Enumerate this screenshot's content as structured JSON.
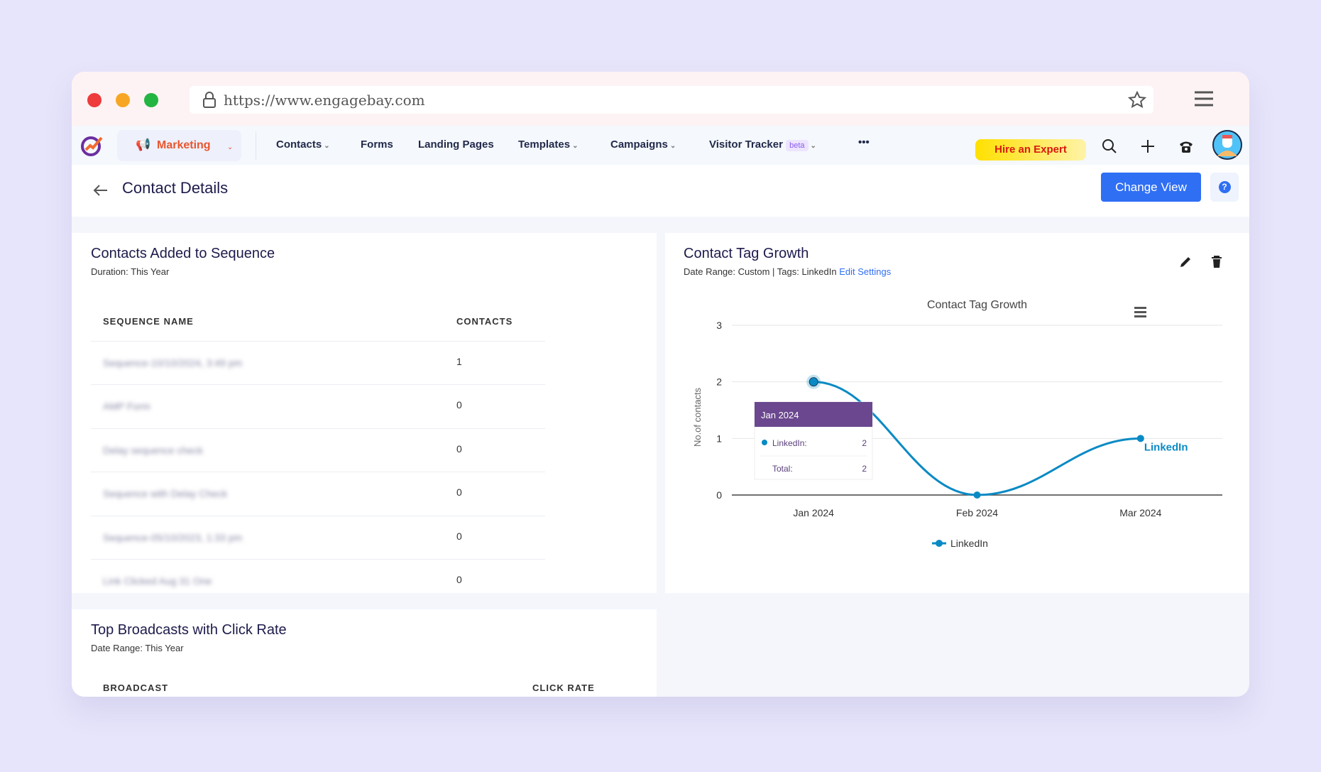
{
  "browser": {
    "url": "https://www.engagebay.com"
  },
  "nav": {
    "module": "Marketing",
    "items": [
      "Contacts",
      "Forms",
      "Landing Pages",
      "Templates",
      "Campaigns",
      "Visitor Tracker"
    ],
    "beta": "beta",
    "more": "•••",
    "hire": "Hire an Expert"
  },
  "header": {
    "title": "Contact Details",
    "change_view": "Change View",
    "help": "?"
  },
  "sequence_card": {
    "title": "Contacts Added to Sequence",
    "subtitle": "Duration: This Year",
    "col1": "SEQUENCE NAME",
    "col2": "CONTACTS",
    "rows": [
      {
        "name": "Sequence-10/10/2024, 3:49 pm",
        "count": "1"
      },
      {
        "name": "AMP Form",
        "count": "0"
      },
      {
        "name": "Delay sequence check",
        "count": "0"
      },
      {
        "name": "Sequence with Delay Check",
        "count": "0"
      },
      {
        "name": "Sequence-05/10/2023, 1:33 pm",
        "count": "0"
      },
      {
        "name": "Link Clicked Aug 31 One",
        "count": "0"
      }
    ]
  },
  "broadcast_card": {
    "title": "Top Broadcasts with Click Rate",
    "subtitle": "Date Range: This Year",
    "col1": "BROADCAST",
    "col2": "CLICK RATE"
  },
  "tag_card": {
    "title": "Contact Tag Growth",
    "subtitle": "Date Range: Custom | Tags: LinkedIn",
    "edit": "Edit Settings"
  },
  "tooltip": {
    "header": "Jan 2024",
    "series_label": "LinkedIn:",
    "series_value": "2",
    "total_label": "Total:",
    "total_value": "2"
  },
  "chart_data": {
    "type": "line",
    "title": "Contact Tag Growth",
    "ylabel": "No.of contacts",
    "xlabel": "",
    "categories": [
      "Jan 2024",
      "Feb 2024",
      "Mar 2024"
    ],
    "series": [
      {
        "name": "LinkedIn",
        "values": [
          2,
          0,
          1
        ],
        "color": "#0a8ac4"
      }
    ],
    "ylim": [
      0,
      3
    ],
    "yticks": [
      "0",
      "1",
      "2",
      "3"
    ],
    "grid": true,
    "legend": "bottom-center",
    "end_label": "LinkedIn"
  }
}
